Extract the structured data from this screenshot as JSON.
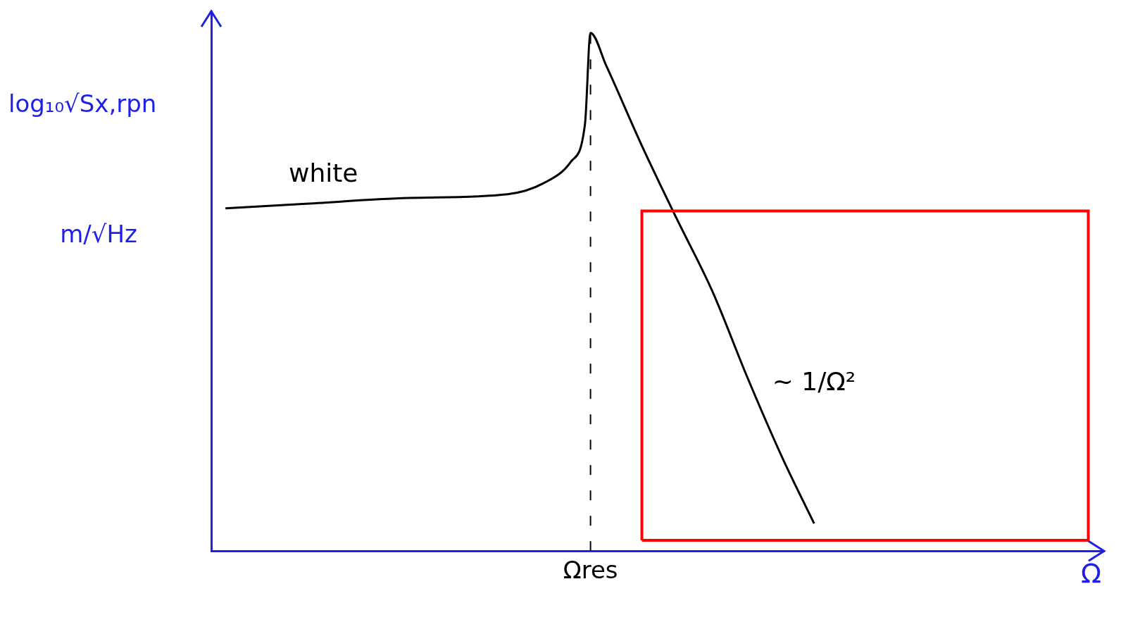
{
  "chart_data": {
    "type": "line",
    "xlabel": "Ω",
    "ylabel": "log₁₀√Sx,rpn",
    "yunit": "m/√Hz",
    "x": [
      0.18,
      1.16,
      2.5,
      3.75,
      4.2,
      4.55,
      4.73,
      4.8,
      5.0,
      5.45,
      5.89,
      6.34,
      6.79,
      7.23,
      7.63
    ],
    "values": [
      6.35,
      6.43,
      6.54,
      6.61,
      6.81,
      7.21,
      7.91,
      9.6,
      8.99,
      7.51,
      6.16,
      4.82,
      3.2,
      1.72,
      0.51
    ],
    "color": "#000000",
    "xlim": [
      0,
      11.3
    ],
    "ylim": [
      0,
      10
    ],
    "xticks": [
      {
        "value": 4.8,
        "label": "Ωres"
      }
    ],
    "tick_labels": "x",
    "grid": false,
    "annotations": [
      {
        "text": "white",
        "x": 0.98,
        "y": 6.97
      },
      {
        "text": "~ 1/Ω²",
        "x": 7.1,
        "y": 3.1
      }
    ],
    "highlight_box": {
      "x": [
        5.45,
        11.1
      ],
      "y": [
        0.2,
        6.3
      ],
      "color": "#ff0000"
    }
  }
}
